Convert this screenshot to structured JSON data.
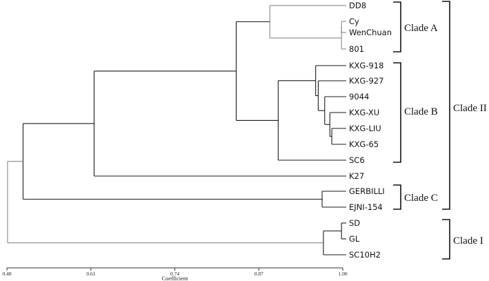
{
  "leaves": [
    "DD8",
    "Cy",
    "WenChuan",
    "801",
    "KXG-918",
    "KXG-927",
    "9044",
    "KXG-XU",
    "KXG-LIU",
    "KXG-65",
    "SC6",
    "K27",
    "GERBILLI",
    "EJNI-154",
    "SD",
    "GL",
    "SC10H2"
  ],
  "clades": [
    {
      "label": "Clade A",
      "from": "DD8",
      "to": "801"
    },
    {
      "label": "Clade B",
      "from": "KXG-918",
      "to": "SC6"
    },
    {
      "label": "Clade C",
      "from": "GERBILLI",
      "to": "EJNI-154"
    },
    {
      "label": "Clade II",
      "from": "DD8",
      "to": "EJNI-154"
    },
    {
      "label": "Clade I",
      "from": "SD",
      "to": "SC10H2"
    }
  ],
  "axis": {
    "title": "Coefficient",
    "ticks": [
      "0.48",
      "0.61",
      "0.74",
      "0.87",
      "1.00"
    ],
    "min": 0.48,
    "max": 1.0
  },
  "merges": [
    {
      "a": "Cy",
      "b": "WenChuan",
      "coef": 0.998
    },
    {
      "a": "Cy+WenChuan",
      "b": "801",
      "coef": 0.998
    },
    {
      "a": "DD8",
      "b": "Cy+WenChuan+801",
      "coef": 0.887
    },
    {
      "a": "KXG-LIU",
      "b": "KXG-65",
      "coef": 0.983
    },
    {
      "a": "KXG-XU",
      "b": "KXG-LIU+KXG-65",
      "coef": 0.98
    },
    {
      "a": "9044",
      "b": "KXG-XU+KXG-LIU+KXG-65",
      "coef": 0.972
    },
    {
      "a": "KXG-927",
      "b": "9044+KXG-XU+KXG-LIU+KXG-65",
      "coef": 0.962
    },
    {
      "a": "KXG-918",
      "b": "KXG-927+9044+KXG-XU+KXG-LIU+KXG-65",
      "coef": 0.958
    },
    {
      "a": "KXG-918...KXG-65",
      "b": "SC6",
      "coef": 0.9
    },
    {
      "a": "DD8...801",
      "b": "KXG-918...SC6",
      "coef": 0.835
    },
    {
      "a": "DD8...SC6",
      "b": "K27",
      "coef": 0.615
    },
    {
      "a": "GERBILLI",
      "b": "EJNI-154",
      "coef": 0.968
    },
    {
      "a": "DD8...K27",
      "b": "GERBILLI+EJNI-154",
      "coef": 0.505
    },
    {
      "a": "SD",
      "b": "GL",
      "coef": 0.998
    },
    {
      "a": "SD+GL",
      "b": "SC10H2",
      "coef": 0.97
    },
    {
      "a": "Clade II",
      "b": "Clade I",
      "coef": 0.481
    }
  ]
}
